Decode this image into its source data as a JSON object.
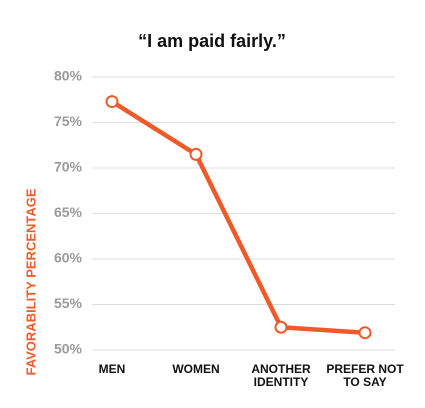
{
  "chart_data": {
    "type": "line",
    "title": "“I am paid fairly.”",
    "y_label": "FAVORABILITY PERCENTAGE",
    "categories": [
      "MEN",
      "WOMEN",
      "ANOTHER IDENTITY",
      "PREFER NOT TO SAY"
    ],
    "values": [
      77.3,
      71.5,
      52.5,
      51.9
    ],
    "color": "#f05a28",
    "ylim": [
      50,
      80
    ],
    "yticks": [
      {
        "value": 50,
        "label": "50%"
      },
      {
        "value": 55,
        "label": "55%"
      },
      {
        "value": 60,
        "label": "60%"
      },
      {
        "value": 65,
        "label": "65%"
      },
      {
        "value": 70,
        "label": "70%"
      },
      {
        "value": 75,
        "label": "75%"
      },
      {
        "value": 80,
        "label": "80%"
      }
    ],
    "grid": true
  }
}
